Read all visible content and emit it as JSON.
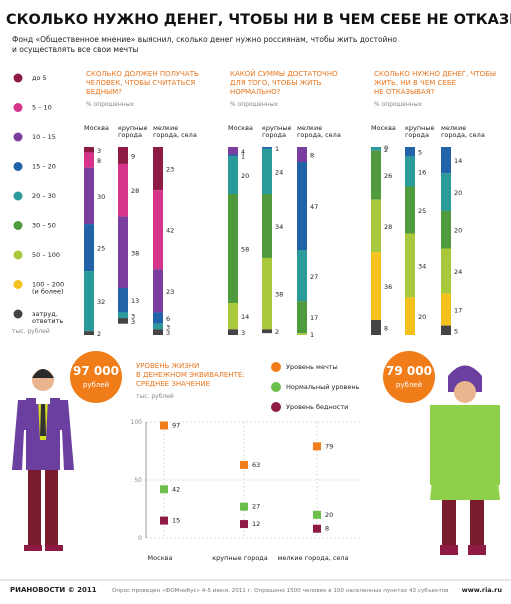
{
  "header": {
    "title": "СКОЛЬКО НУЖНО ДЕНЕГ, ЧТОБЫ НИ В ЧЕМ СЕБЕ НЕ ОТКАЗЫВАТЬ",
    "subtitle": [
      "Фонд «Общественное мнение» выяснил, сколько денег нужно россиянам, чтобы жить достойно",
      "и осуществлять все свои мечты"
    ]
  },
  "chart_data": [
    {
      "type": "stacked-bar",
      "title": [
        "СКОЛЬКО ДОЛЖЕН ПОЛУЧАТЬ",
        "ЧЕЛОВЕК, ЧТОБЫ СЧИТАТЬСЯ",
        "БЕДНЫМ?"
      ],
      "subtitle": "% опрошенных",
      "legend_title": "тыс. рублей",
      "categories": [
        [
          "Москва"
        ],
        [
          "крупные",
          "города"
        ],
        [
          "мелкие",
          "города, села"
        ]
      ],
      "series": [
        {
          "name": [
            "до 5"
          ],
          "color": "#8e1b45",
          "values": [
            3,
            9,
            23
          ]
        },
        {
          "name": [
            "5 – 10"
          ],
          "color": "#d6338a",
          "values": [
            8,
            28,
            42
          ]
        },
        {
          "name": [
            "10 – 15"
          ],
          "color": "#7a3f9e",
          "values": [
            30,
            38,
            23
          ]
        },
        {
          "name": [
            "15 – 20"
          ],
          "color": "#2162a8",
          "values": [
            25,
            13,
            6
          ]
        },
        {
          "name": [
            "20 – 30"
          ],
          "color": "#2b9a9a",
          "values": [
            32,
            3,
            3
          ]
        },
        {
          "name": [
            "30 – 50"
          ],
          "color": "#4e9a3c",
          "values": [
            null,
            null,
            null
          ]
        },
        {
          "name": [
            "50 – 100"
          ],
          "color": "#a9c83c",
          "values": [
            null,
            null,
            null
          ]
        },
        {
          "name": [
            "100 – 200",
            "(и более)"
          ],
          "color": "#f4c21c",
          "values": [
            null,
            null,
            null
          ]
        },
        {
          "name": [
            "затруд.",
            "ответить"
          ],
          "color": "#444444",
          "values": [
            2,
            3,
            3
          ]
        }
      ]
    },
    {
      "type": "stacked-bar",
      "title": [
        "КАКОЙ СУММЫ ДОСТАТОЧНО",
        "ДЛЯ ТОГО, ЧТОБЫ ЖИТЬ",
        "НОРМАЛЬНО?"
      ],
      "subtitle": "% опрошенных",
      "categories": [
        [
          "Москва"
        ],
        [
          "крупные",
          "города"
        ],
        [
          "мелкие",
          "города, села"
        ]
      ],
      "series": [
        {
          "color": "#7a3f9e",
          "values": [
            4,
            null,
            8
          ]
        },
        {
          "color": "#2162a8",
          "values": [
            1,
            1,
            47
          ]
        },
        {
          "color": "#2b9a9a",
          "values": [
            20,
            24,
            27
          ]
        },
        {
          "color": "#4e9a3c",
          "values": [
            58,
            34,
            17
          ]
        },
        {
          "color": "#a9c83c",
          "values": [
            14,
            38,
            1
          ]
        },
        {
          "color": "#444444",
          "values": [
            3,
            2,
            null
          ]
        }
      ]
    },
    {
      "type": "stacked-bar",
      "title": [
        "СКОЛЬКО НУЖНО ДЕНЕГ, ЧТОБЫ",
        "ЖИТЬ, НИ В ЧЕМ СЕБЕ",
        "НЕ ОТКАЗЫВАЯ?"
      ],
      "subtitle": "% опрошенных",
      "categories": [
        [
          "Москва"
        ],
        [
          "крупные",
          "города"
        ],
        [
          "мелкие",
          "города, села"
        ]
      ],
      "series": [
        {
          "color": "#2162a8",
          "values": [
            0,
            5,
            14
          ]
        },
        {
          "color": "#2b9a9a",
          "values": [
            2,
            16,
            20
          ]
        },
        {
          "color": "#4e9a3c",
          "values": [
            26,
            25,
            20
          ]
        },
        {
          "color": "#a9c83c",
          "values": [
            28,
            34,
            24
          ]
        },
        {
          "color": "#f4c21c",
          "values": [
            36,
            20,
            17
          ]
        },
        {
          "color": "#444444",
          "values": [
            8,
            null,
            5
          ]
        }
      ]
    },
    {
      "type": "dot",
      "title": [
        "УРОВЕНЬ ЖИЗНИ",
        "В ДЕНЕЖНОМ ЭКВИВАЛЕНТЕ:",
        "СРЕДНЕЕ ЗНАЧЕНИЕ"
      ],
      "subtitle": "тыс. рублей",
      "categories": [
        "Москва",
        "крупные города",
        "мелкие города, села"
      ],
      "ylim": [
        0,
        100
      ],
      "yticks": [
        0,
        50,
        100
      ],
      "series": [
        {
          "name": "Уровень мечты",
          "color": "#f07d1a",
          "values": [
            97,
            63,
            79
          ]
        },
        {
          "name": "Нормальный уровень",
          "color": "#6cbf4a",
          "values": [
            42,
            27,
            20
          ]
        },
        {
          "name": "Уровень бедности",
          "color": "#8e1b45",
          "values": [
            15,
            12,
            8
          ]
        }
      ]
    }
  ],
  "callouts": [
    {
      "amount": "97 000",
      "unit": "рублей"
    },
    {
      "amount": "79 000",
      "unit": "рублей"
    }
  ],
  "footer": {
    "brand": "РИАНОВОСТИ © 2011",
    "note": "Опрос проведен «ФОМнибус» 4-5 июня, 2011 г. Опрошено 1500 человек в 100 населенных пунктах 43 субъектов",
    "site": "www.ria.ru"
  }
}
